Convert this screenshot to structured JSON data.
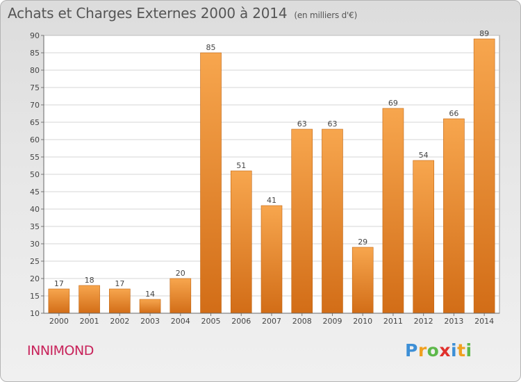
{
  "header": {
    "title": "Achats et Charges Externes 2000 à 2014",
    "subtitle": "(en milliers d'€)"
  },
  "footer": {
    "commune": "INNIMOND",
    "logo": [
      "P",
      "r",
      "o",
      "x",
      "i",
      "t",
      "i"
    ]
  },
  "colors": {
    "bar_light": "#f7a64e",
    "bar_dark": "#d26d17",
    "commune": "#c8225a"
  },
  "chart_data": {
    "type": "bar",
    "title": "Achats et Charges Externes 2000 à 2014",
    "subtitle": "(en milliers d'€)",
    "categories": [
      "2000",
      "2001",
      "2002",
      "2003",
      "2004",
      "2005",
      "2006",
      "2007",
      "2008",
      "2009",
      "2010",
      "2011",
      "2012",
      "2013",
      "2014"
    ],
    "values": [
      17,
      18,
      17,
      14,
      20,
      85,
      51,
      41,
      63,
      63,
      29,
      69,
      54,
      66,
      89
    ],
    "ylim": [
      10,
      90
    ],
    "yticks": [
      10,
      15,
      20,
      25,
      30,
      35,
      40,
      45,
      50,
      55,
      60,
      65,
      70,
      75,
      80,
      85,
      90
    ],
    "xlabel": "",
    "ylabel": "",
    "grid": true,
    "data_labels": true
  }
}
